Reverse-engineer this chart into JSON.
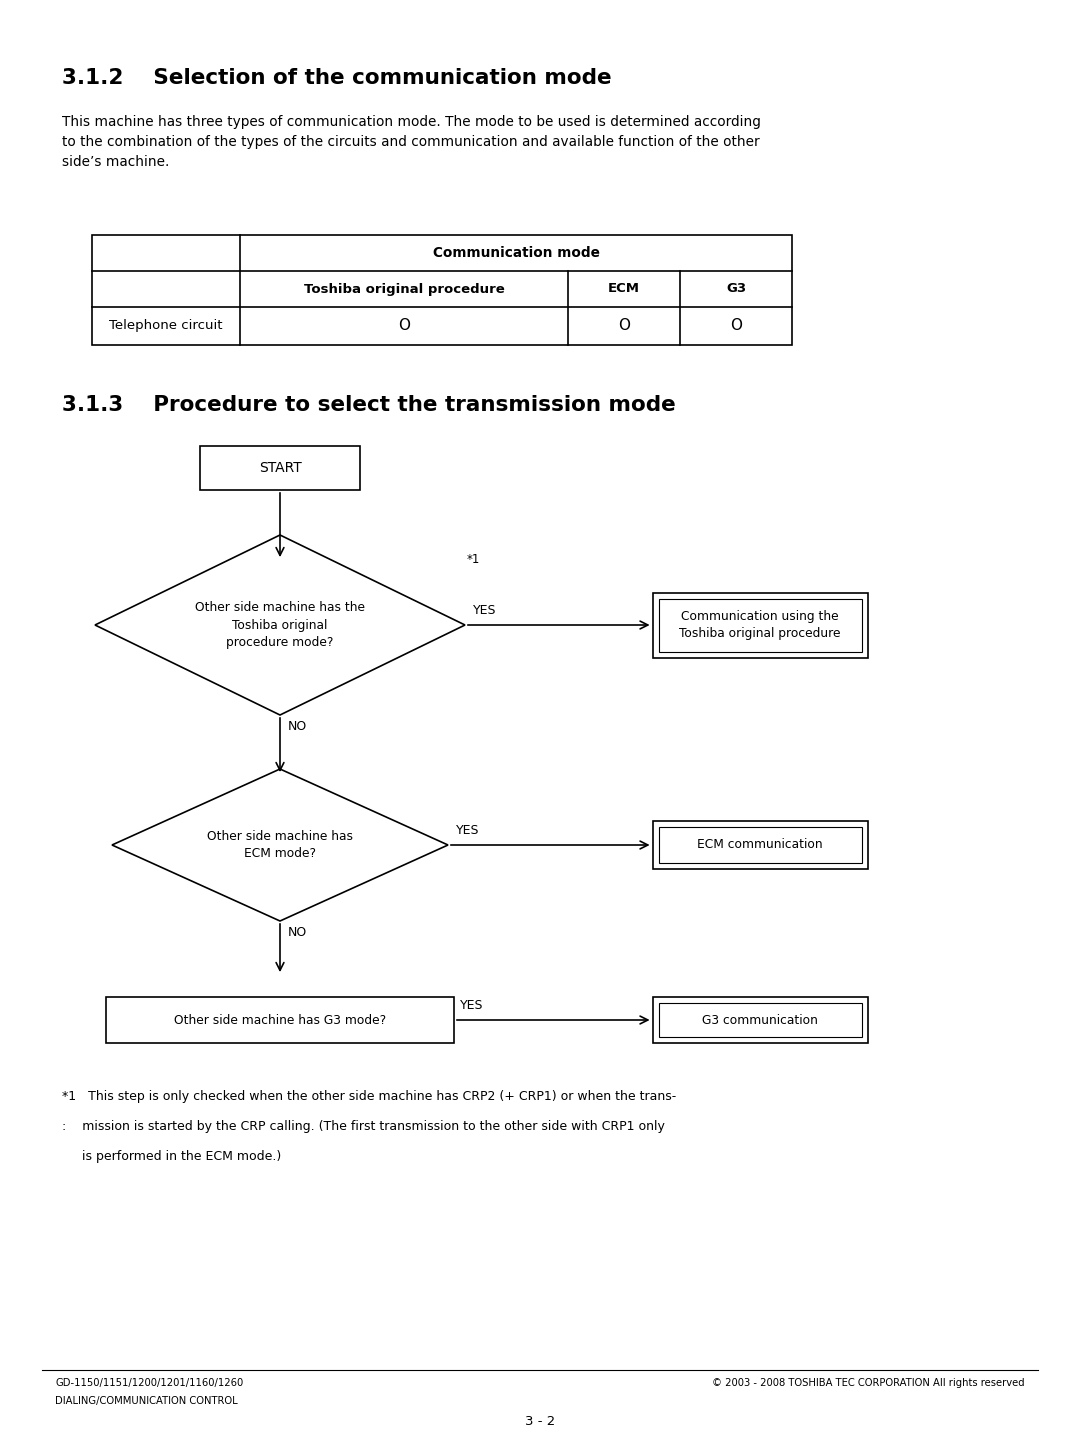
{
  "section_312_title": "3.1.2    Selection of the communication mode",
  "section_312_body": "This machine has three types of communication mode. The mode to be used is determined according\nto the combination of the types of the circuits and communication and available function of the other\nside’s machine.",
  "table_header_main": "Communication mode",
  "table_col1": "Toshiba original procedure",
  "table_col2": "ECM",
  "table_col3": "G3",
  "table_row1_label": "Telephone circuit",
  "table_row1_vals": [
    "O",
    "O",
    "O"
  ],
  "section_313_title": "3.1.3    Procedure to select the transmission mode",
  "start_label": "START",
  "diamond1_label": "Other side machine has the\nToshiba original\nprocedure mode?",
  "diamond1_star": "*1",
  "diamond1_yes": "YES",
  "diamond1_no": "NO",
  "box1_label": "Communication using the\nToshiba original procedure",
  "diamond2_label": "Other side machine has\nECM mode?",
  "diamond2_yes": "YES",
  "diamond2_no": "NO",
  "box2_label": "ECM communication",
  "box3_label": "Other side machine has G3 mode?",
  "box3_yes": "YES",
  "box4_label": "G3 communication",
  "footnote_line1": "*1   This step is only checked when the other side machine has CRP2 (+ CRP1) or when the trans-",
  "footnote_line2": ":    mission is started by the CRP calling. (The first transmission to the other side with CRP1 only",
  "footnote_line3": "     is performed in the ECM mode.)",
  "footer_left1": "GD-1150/1151/1200/1201/1160/1260",
  "footer_left2": "DIALING/COMMUNICATION CONTROL",
  "footer_right": "© 2003 - 2008 TOSHIBA TEC CORPORATION All rights reserved",
  "footer_page": "3 - 2",
  "bg_color": "#ffffff",
  "text_color": "#000000",
  "line_color": "#000000"
}
